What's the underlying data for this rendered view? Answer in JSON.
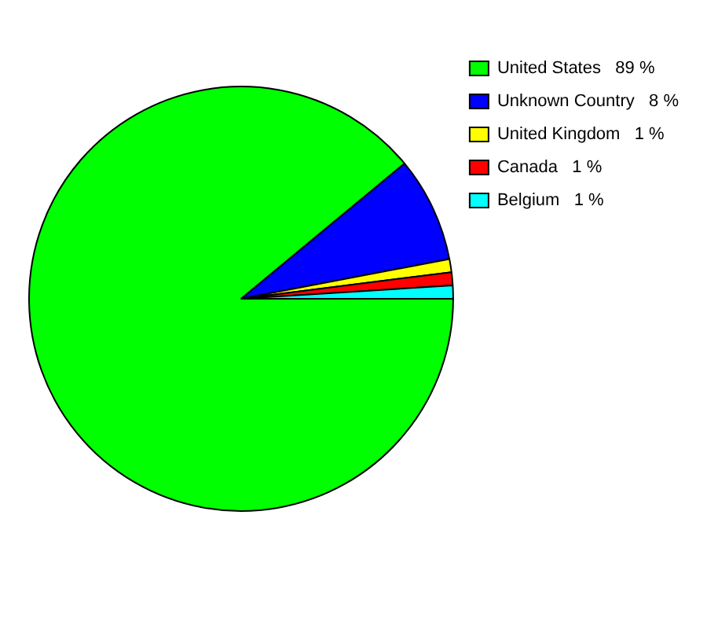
{
  "chart_data": {
    "type": "pie",
    "categories": [
      "United States   89 %",
      "Unknown Country   8 %",
      "United Kingdom   1 %",
      "Canada   1 %",
      "Belgium   1 %"
    ],
    "values": [
      89,
      8,
      1,
      1,
      1
    ],
    "colors": [
      "#00ff00",
      "#0000ff",
      "#ffff00",
      "#ff0000",
      "#00ffff"
    ],
    "legend": "top right"
  }
}
